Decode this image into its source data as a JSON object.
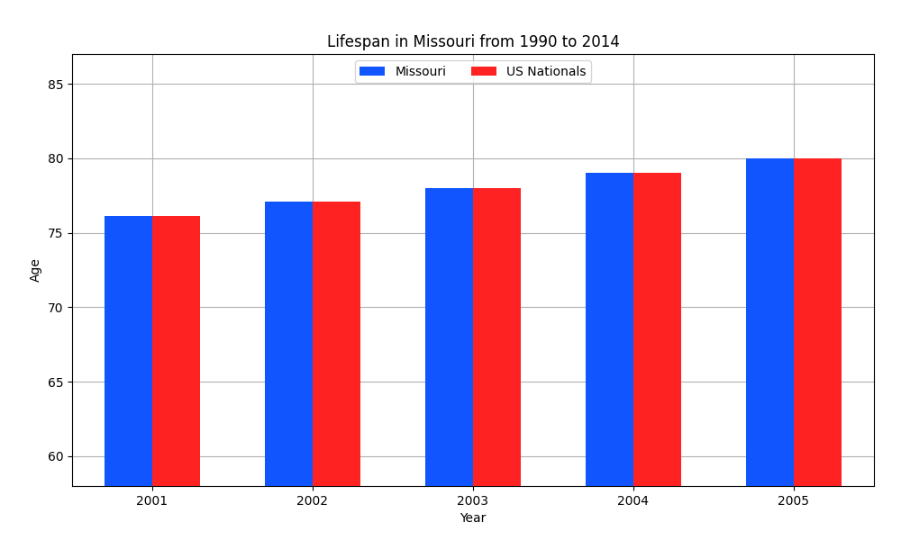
{
  "chart_data": {
    "type": "bar",
    "title": "Lifespan in Missouri from 1990 to 2014",
    "x_label": "Year",
    "y_label": "Age",
    "categories": [
      "2001",
      "2002",
      "2003",
      "2004",
      "2005"
    ],
    "series": [
      {
        "name": "Missouri",
        "color": "#1155ff",
        "values": [
          76.1,
          77.1,
          78.0,
          79.0,
          80.0
        ]
      },
      {
        "name": "US Nationals",
        "color": "#ff2222",
        "values": [
          76.1,
          77.1,
          78.0,
          79.0,
          80.0
        ]
      }
    ],
    "ylim": [
      58,
      87
    ],
    "yticks": [
      60,
      65,
      70,
      75,
      80,
      85
    ],
    "grid": true,
    "legend": "upper center"
  }
}
